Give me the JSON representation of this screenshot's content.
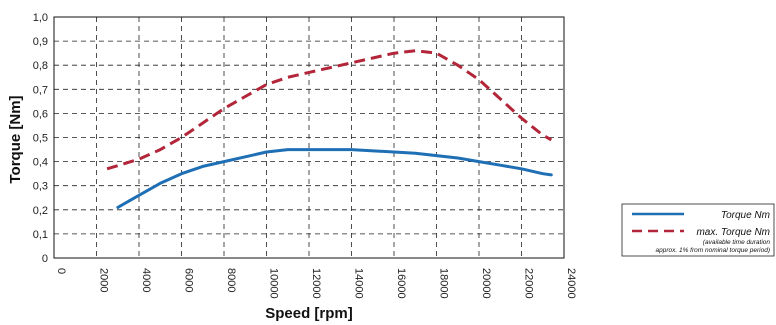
{
  "chart_data": {
    "type": "line",
    "xlabel": "Speed [rpm]",
    "ylabel": "Torque [Nm]",
    "xlim": [
      0,
      24000
    ],
    "ylim": [
      0,
      1.0
    ],
    "x_ticks": [
      "0",
      "2000",
      "4000",
      "6000",
      "8000",
      "10000",
      "12000",
      "14000",
      "16000",
      "18000",
      "20000",
      "22000",
      "24000"
    ],
    "y_ticks": [
      "0",
      "0,1",
      "0,2",
      "0,3",
      "0,4",
      "0,5",
      "0,6",
      "0,7",
      "0,8",
      "0,9",
      "1,0"
    ],
    "grid": true,
    "legend_position": "right",
    "series": [
      {
        "name": "Torque Nm",
        "color": "#1f6fb5",
        "style": "solid",
        "points": [
          [
            3000,
            0.21
          ],
          [
            4000,
            0.26
          ],
          [
            5000,
            0.31
          ],
          [
            6000,
            0.35
          ],
          [
            7000,
            0.38
          ],
          [
            8000,
            0.4
          ],
          [
            9000,
            0.42
          ],
          [
            10000,
            0.44
          ],
          [
            11000,
            0.45
          ],
          [
            12000,
            0.45
          ],
          [
            14000,
            0.45
          ],
          [
            16000,
            0.44
          ],
          [
            17000,
            0.435
          ],
          [
            18000,
            0.425
          ],
          [
            19000,
            0.415
          ],
          [
            20000,
            0.4
          ],
          [
            21000,
            0.385
          ],
          [
            22000,
            0.37
          ],
          [
            23000,
            0.35
          ],
          [
            23400,
            0.345
          ]
        ]
      },
      {
        "name": "max. Torque Nm",
        "color": "#b3263a",
        "style": "dashed",
        "points": [
          [
            2500,
            0.37
          ],
          [
            4000,
            0.41
          ],
          [
            5000,
            0.45
          ],
          [
            6000,
            0.5
          ],
          [
            7000,
            0.56
          ],
          [
            8000,
            0.62
          ],
          [
            9000,
            0.67
          ],
          [
            10000,
            0.72
          ],
          [
            11000,
            0.75
          ],
          [
            12000,
            0.77
          ],
          [
            13000,
            0.79
          ],
          [
            14000,
            0.81
          ],
          [
            15000,
            0.83
          ],
          [
            16000,
            0.85
          ],
          [
            17000,
            0.86
          ],
          [
            18000,
            0.85
          ],
          [
            19000,
            0.8
          ],
          [
            20000,
            0.74
          ],
          [
            21000,
            0.66
          ],
          [
            22000,
            0.58
          ],
          [
            23000,
            0.51
          ],
          [
            23400,
            0.49
          ]
        ]
      }
    ],
    "legend_note_1": "(available time duration",
    "legend_note_2": "approx. 1% from nominal torque period)"
  }
}
